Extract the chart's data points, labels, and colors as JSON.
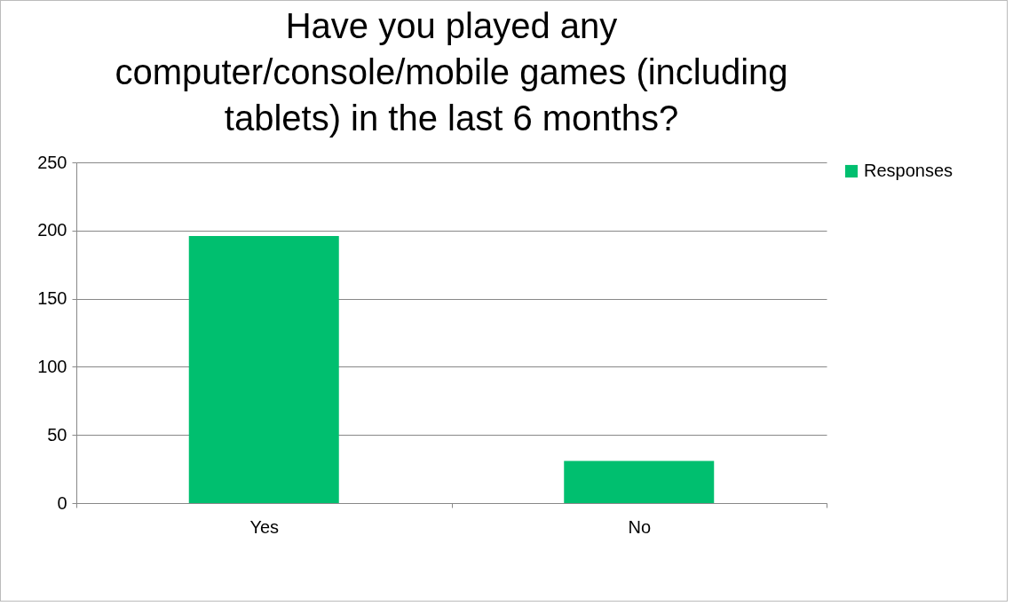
{
  "chart_data": {
    "type": "bar",
    "title": "Have you played any computer/console/mobile games (including tablets) in the last 6 months?",
    "categories": [
      "Yes",
      "No"
    ],
    "series": [
      {
        "name": "Responses",
        "color": "#00bf6f",
        "values": [
          196,
          31
        ]
      }
    ],
    "ylim": [
      0,
      250
    ],
    "yticks": [
      0,
      50,
      100,
      150,
      200,
      250
    ],
    "grid": "y",
    "legend": "right"
  }
}
